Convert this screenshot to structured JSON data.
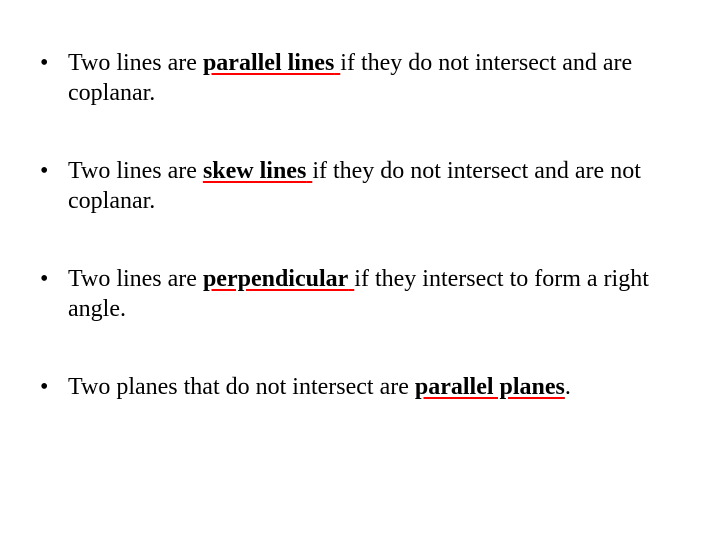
{
  "items": [
    {
      "pre": "Two lines are ",
      "term": "parallel lines",
      "trail": " ",
      "post": "if they do not intersect and are coplanar."
    },
    {
      "pre": "Two lines are ",
      "term": "skew lines",
      "trail": " ",
      "post": "if they do not intersect and are not coplanar."
    },
    {
      "pre": "Two lines are ",
      "term": "perpendicular",
      "trail": " ",
      "post": "if they intersect to form a right angle."
    },
    {
      "pre": "Two planes that do not intersect are ",
      "term": "parallel planes",
      "trail": "",
      "post": "."
    }
  ],
  "colors": {
    "text": "#000000",
    "underline": "#ff0000",
    "background": "#ffffff"
  },
  "font": {
    "family": "Times New Roman",
    "size_pt": 24
  }
}
